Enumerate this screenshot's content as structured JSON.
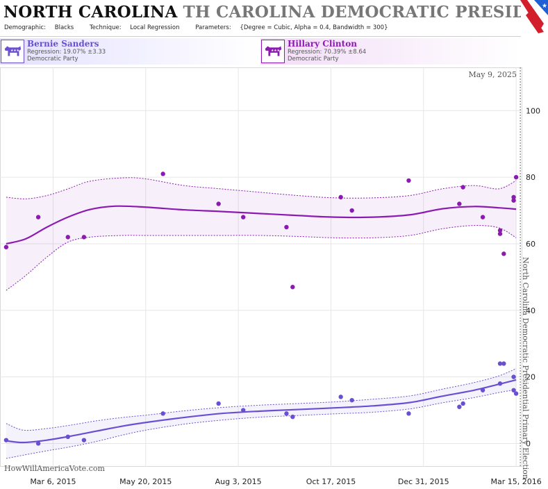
{
  "header": {
    "state": "NORTH CAROLINA",
    "race": "TH CAROLINA DEMOCRATIC PRESIDENTIAL I",
    "demographic_label": "Demographic:",
    "demographic": "Blacks",
    "technique_label": "Technique:",
    "technique": "Local Regression",
    "parameters_label": "Parameters:",
    "parameters": "{Degree = Cubic, Alpha = 0.4, Bandwidth = 300}"
  },
  "candidates": [
    {
      "name": "Bernie Sanders",
      "regression": "Regression: 19.07% ±3.33",
      "party": "Democratic Party",
      "color": "#6a4fd1"
    },
    {
      "name": "Hillary Clinton",
      "regression": "Regression: 70.39% ±8.64",
      "party": "Democratic Party",
      "color": "#8b1bb0"
    }
  ],
  "footer": {
    "site": "HowWillAmericaVote.com"
  },
  "chart_data": {
    "type": "scatter",
    "x_ticks": [
      "Mar 6, 2015",
      "May 20, 2015",
      "Aug 3, 2015",
      "Oct 17, 2015",
      "Dec 31, 2015",
      "Mar 15, 2016"
    ],
    "y_ticks": [
      0,
      20,
      40,
      60,
      80,
      100
    ],
    "ylim": [
      -7,
      113
    ],
    "xlim": [
      "2015-01-22",
      "2016-03-20"
    ],
    "date_label": "May 9, 2025",
    "election_label": "North Carolina Democratic Presidential Primary Election",
    "election_date": "2016-03-15",
    "series": [
      {
        "name": "Hillary Clinton",
        "color": "#8b1bb0",
        "points": [
          [
            "2015-01-27",
            59
          ],
          [
            "2015-02-22",
            68
          ],
          [
            "2015-03-18",
            62
          ],
          [
            "2015-03-31",
            62
          ],
          [
            "2015-06-03",
            81
          ],
          [
            "2015-07-18",
            72
          ],
          [
            "2015-08-07",
            68
          ],
          [
            "2015-09-11",
            65
          ],
          [
            "2015-09-16",
            47
          ],
          [
            "2015-10-25",
            74
          ],
          [
            "2015-11-03",
            70
          ],
          [
            "2015-12-19",
            79
          ],
          [
            "2016-01-29",
            72
          ],
          [
            "2016-02-01",
            77
          ],
          [
            "2016-02-17",
            68
          ],
          [
            "2016-03-02",
            64
          ],
          [
            "2016-03-02",
            63
          ],
          [
            "2016-03-05",
            57
          ],
          [
            "2016-03-13",
            74
          ],
          [
            "2016-03-13",
            73
          ],
          [
            "2016-03-15",
            80
          ]
        ],
        "regression": [
          [
            "2015-01-27",
            60
          ],
          [
            "2015-02-12",
            61.5
          ],
          [
            "2015-03-01",
            65
          ],
          [
            "2015-03-18",
            68
          ],
          [
            "2015-04-05",
            70.3
          ],
          [
            "2015-04-25",
            71.3
          ],
          [
            "2015-05-20",
            71
          ],
          [
            "2015-06-20",
            70.2
          ],
          [
            "2015-07-20",
            69.7
          ],
          [
            "2015-08-20",
            69.1
          ],
          [
            "2015-09-20",
            68.5
          ],
          [
            "2015-10-20",
            68
          ],
          [
            "2015-11-20",
            68
          ],
          [
            "2015-12-20",
            68.7
          ],
          [
            "2016-01-15",
            70.5
          ],
          [
            "2016-02-10",
            71.2
          ],
          [
            "2016-03-01",
            70.8
          ],
          [
            "2016-03-15",
            70.4
          ]
        ],
        "upper": [
          [
            "2015-01-27",
            74
          ],
          [
            "2015-02-12",
            73.5
          ],
          [
            "2015-03-01",
            74.5
          ],
          [
            "2015-03-18",
            76.5
          ],
          [
            "2015-04-05",
            78.8
          ],
          [
            "2015-05-01",
            79.8
          ],
          [
            "2015-05-20",
            79.5
          ],
          [
            "2015-06-20",
            77.5
          ],
          [
            "2015-07-20",
            76.5
          ],
          [
            "2015-08-20",
            75.5
          ],
          [
            "2015-09-20",
            74.5
          ],
          [
            "2015-10-20",
            73.8
          ],
          [
            "2015-11-20",
            73.8
          ],
          [
            "2015-12-20",
            74.5
          ],
          [
            "2016-01-15",
            76.5
          ],
          [
            "2016-02-10",
            77.5
          ],
          [
            "2016-03-01",
            76.5
          ],
          [
            "2016-03-15",
            79
          ]
        ],
        "lower": [
          [
            "2015-01-27",
            46
          ],
          [
            "2015-02-12",
            50.5
          ],
          [
            "2015-03-01",
            56
          ],
          [
            "2015-03-18",
            60.5
          ],
          [
            "2015-04-05",
            62
          ],
          [
            "2015-05-01",
            62.5
          ],
          [
            "2015-05-20",
            62.5
          ],
          [
            "2015-06-20",
            62.5
          ],
          [
            "2015-07-20",
            62.5
          ],
          [
            "2015-08-20",
            62.5
          ],
          [
            "2015-09-20",
            62.2
          ],
          [
            "2015-10-20",
            61.8
          ],
          [
            "2015-11-20",
            61.8
          ],
          [
            "2015-12-20",
            62.5
          ],
          [
            "2016-01-15",
            64.5
          ],
          [
            "2016-02-10",
            65.5
          ],
          [
            "2016-03-01",
            64.8
          ],
          [
            "2016-03-15",
            61.8
          ]
        ]
      },
      {
        "name": "Bernie Sanders",
        "color": "#6a4fd1",
        "points": [
          [
            "2015-01-27",
            1
          ],
          [
            "2015-02-22",
            0
          ],
          [
            "2015-03-18",
            2
          ],
          [
            "2015-03-31",
            1
          ],
          [
            "2015-06-03",
            9
          ],
          [
            "2015-07-18",
            12
          ],
          [
            "2015-08-07",
            10
          ],
          [
            "2015-09-11",
            9
          ],
          [
            "2015-09-16",
            8
          ],
          [
            "2015-10-25",
            14
          ],
          [
            "2015-11-03",
            13
          ],
          [
            "2015-12-19",
            9
          ],
          [
            "2016-01-29",
            11
          ],
          [
            "2016-02-01",
            12
          ],
          [
            "2016-02-17",
            16
          ],
          [
            "2016-03-02",
            24
          ],
          [
            "2016-03-05",
            24
          ],
          [
            "2016-03-02",
            18
          ],
          [
            "2016-03-13",
            20
          ],
          [
            "2016-03-13",
            16
          ],
          [
            "2016-03-15",
            15
          ]
        ],
        "regression": [
          [
            "2015-01-27",
            0.8
          ],
          [
            "2015-02-10",
            0.3
          ],
          [
            "2015-03-01",
            1
          ],
          [
            "2015-03-20",
            2.2
          ],
          [
            "2015-04-10",
            3.7
          ],
          [
            "2015-05-01",
            5.2
          ],
          [
            "2015-05-20",
            6.3
          ],
          [
            "2015-06-20",
            7.8
          ],
          [
            "2015-07-20",
            9
          ],
          [
            "2015-08-20",
            9.7
          ],
          [
            "2015-09-20",
            10.2
          ],
          [
            "2015-10-20",
            10.7
          ],
          [
            "2015-11-20",
            11.3
          ],
          [
            "2015-12-20",
            12.3
          ],
          [
            "2016-01-15",
            14.2
          ],
          [
            "2016-02-10",
            16
          ],
          [
            "2016-03-01",
            17.8
          ],
          [
            "2016-03-15",
            19.1
          ]
        ],
        "upper": [
          [
            "2015-01-27",
            6
          ],
          [
            "2015-02-10",
            4
          ],
          [
            "2015-03-01",
            4.5
          ],
          [
            "2015-03-20",
            5.5
          ],
          [
            "2015-04-10",
            6.8
          ],
          [
            "2015-05-01",
            7.8
          ],
          [
            "2015-05-20",
            8.5
          ],
          [
            "2015-06-20",
            9.8
          ],
          [
            "2015-07-20",
            10.8
          ],
          [
            "2015-08-20",
            11.5
          ],
          [
            "2015-09-20",
            12
          ],
          [
            "2015-10-20",
            12.5
          ],
          [
            "2015-11-20",
            13.3
          ],
          [
            "2015-12-20",
            14.3
          ],
          [
            "2016-01-15",
            16.3
          ],
          [
            "2016-02-10",
            18.3
          ],
          [
            "2016-03-01",
            20.3
          ],
          [
            "2016-03-15",
            22.5
          ]
        ],
        "lower": [
          [
            "2015-01-27",
            -4.5
          ],
          [
            "2015-02-10",
            -3.5
          ],
          [
            "2015-03-01",
            -2.2
          ],
          [
            "2015-03-20",
            -1
          ],
          [
            "2015-04-10",
            0.6
          ],
          [
            "2015-05-01",
            2.5
          ],
          [
            "2015-05-20",
            4
          ],
          [
            "2015-06-20",
            5.8
          ],
          [
            "2015-07-20",
            7
          ],
          [
            "2015-08-20",
            7.9
          ],
          [
            "2015-09-20",
            8.4
          ],
          [
            "2015-10-20",
            8.9
          ],
          [
            "2015-11-20",
            9.4
          ],
          [
            "2015-12-20",
            10.4
          ],
          [
            "2016-01-15",
            12.2
          ],
          [
            "2016-02-10",
            13.8
          ],
          [
            "2016-03-01",
            15.3
          ],
          [
            "2016-03-15",
            16.2
          ]
        ]
      }
    ]
  }
}
